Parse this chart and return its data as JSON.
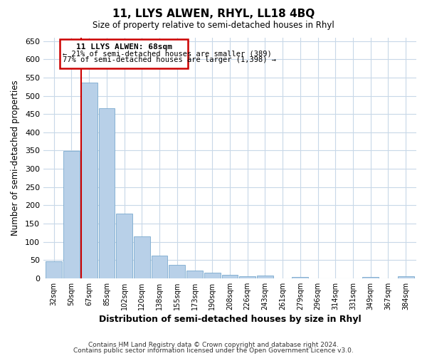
{
  "title": "11, LLYS ALWEN, RHYL, LL18 4BQ",
  "subtitle": "Size of property relative to semi-detached houses in Rhyl",
  "xlabel": "Distribution of semi-detached houses by size in Rhyl",
  "ylabel": "Number of semi-detached properties",
  "footer_line1": "Contains HM Land Registry data © Crown copyright and database right 2024.",
  "footer_line2": "Contains public sector information licensed under the Open Government Licence v3.0.",
  "bin_labels": [
    "32sqm",
    "50sqm",
    "67sqm",
    "85sqm",
    "102sqm",
    "120sqm",
    "138sqm",
    "155sqm",
    "173sqm",
    "190sqm",
    "208sqm",
    "226sqm",
    "243sqm",
    "261sqm",
    "279sqm",
    "296sqm",
    "314sqm",
    "331sqm",
    "349sqm",
    "367sqm",
    "384sqm"
  ],
  "bar_values": [
    47,
    349,
    537,
    466,
    177,
    115,
    62,
    36,
    22,
    15,
    10,
    5,
    8,
    0,
    3,
    0,
    0,
    0,
    3,
    0,
    5
  ],
  "bar_color": "#b8d0e8",
  "bar_edge_color": "#7aaace",
  "property_line_index": 2,
  "property_label": "11 LLYS ALWEN: 68sqm",
  "annotation_line1": "← 21% of semi-detached houses are smaller (389)",
  "annotation_line2": "77% of semi-detached houses are larger (1,398) →",
  "annotation_box_color": "#ffffff",
  "annotation_box_edge": "#cc0000",
  "property_line_color": "#cc0000",
  "ylim": [
    0,
    660
  ],
  "yticks": [
    0,
    50,
    100,
    150,
    200,
    250,
    300,
    350,
    400,
    450,
    500,
    550,
    600,
    650
  ],
  "background_color": "#ffffff",
  "grid_color": "#c8d8e8"
}
